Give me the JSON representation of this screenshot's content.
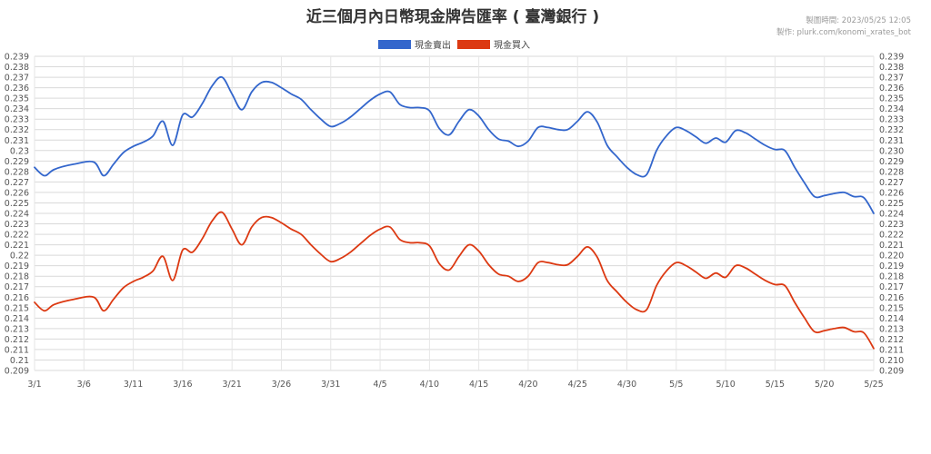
{
  "chart_data": {
    "type": "line",
    "title": "近三個月內日幣現金牌告匯率 ( 臺灣銀行 )",
    "notes": [
      "製圖時間: 2023/05/25 12:05",
      "製作: plurk.com/konomi_xrates_bot"
    ],
    "ylim": [
      0.209,
      0.239
    ],
    "yticks": [
      "0.239",
      "0.238",
      "0.237",
      "0.236",
      "0.235",
      "0.234",
      "0.233",
      "0.232",
      "0.231",
      "0.23",
      "0.229",
      "0.228",
      "0.227",
      "0.226",
      "0.225",
      "0.224",
      "0.223",
      "0.222",
      "0.221",
      "0.22",
      "0.219",
      "0.218",
      "0.217",
      "0.216",
      "0.215",
      "0.214",
      "0.213",
      "0.212",
      "0.211",
      "0.21",
      "0.209"
    ],
    "yticks_right": [
      "0.239",
      "0.238",
      "0.237",
      "0.236",
      "0.235",
      "0.234",
      "0.233",
      "0.232",
      "0.231",
      "0.230",
      "0.229",
      "0.228",
      "0.227",
      "0.226",
      "0.225",
      "0.224",
      "0.223",
      "0.222",
      "0.221",
      "0.220",
      "0.219",
      "0.218",
      "0.217",
      "0.216",
      "0.215",
      "0.214",
      "0.213",
      "0.212",
      "0.211",
      "0.210",
      "0.209"
    ],
    "x_day_range": [
      0,
      85
    ],
    "xticks": [
      {
        "label": "3/1",
        "day": 0
      },
      {
        "label": "3/6",
        "day": 5
      },
      {
        "label": "3/11",
        "day": 10
      },
      {
        "label": "3/16",
        "day": 15
      },
      {
        "label": "3/21",
        "day": 20
      },
      {
        "label": "3/26",
        "day": 25
      },
      {
        "label": "3/31",
        "day": 30
      },
      {
        "label": "4/5",
        "day": 35
      },
      {
        "label": "4/10",
        "day": 40
      },
      {
        "label": "4/15",
        "day": 45
      },
      {
        "label": "4/20",
        "day": 50
      },
      {
        "label": "4/25",
        "day": 55
      },
      {
        "label": "4/30",
        "day": 60
      },
      {
        "label": "5/5",
        "day": 65
      },
      {
        "label": "5/10",
        "day": 70
      },
      {
        "label": "5/15",
        "day": 75
      },
      {
        "label": "5/20",
        "day": 80
      },
      {
        "label": "5/25",
        "day": 85
      }
    ],
    "series": [
      {
        "name": "現金賣出",
        "color": "#3366cc",
        "points": [
          [
            0,
            0.2284
          ],
          [
            1,
            0.2276
          ],
          [
            2,
            0.2282
          ],
          [
            4,
            0.2287
          ],
          [
            6,
            0.2289
          ],
          [
            7,
            0.2276
          ],
          [
            8,
            0.2287
          ],
          [
            9,
            0.2298
          ],
          [
            10,
            0.2304
          ],
          [
            11,
            0.2308
          ],
          [
            12,
            0.2314
          ],
          [
            13,
            0.2328
          ],
          [
            14,
            0.2305
          ],
          [
            15,
            0.2334
          ],
          [
            16,
            0.2332
          ],
          [
            17,
            0.2345
          ],
          [
            18,
            0.2362
          ],
          [
            19,
            0.237
          ],
          [
            20,
            0.2354
          ],
          [
            21,
            0.2339
          ],
          [
            22,
            0.2356
          ],
          [
            23,
            0.2365
          ],
          [
            24,
            0.2365
          ],
          [
            25,
            0.236
          ],
          [
            26,
            0.2354
          ],
          [
            27,
            0.2349
          ],
          [
            28,
            0.2339
          ],
          [
            29,
            0.233
          ],
          [
            30,
            0.2323
          ],
          [
            31,
            0.2326
          ],
          [
            32,
            0.2332
          ],
          [
            33,
            0.234
          ],
          [
            34,
            0.2348
          ],
          [
            35,
            0.2354
          ],
          [
            36,
            0.2356
          ],
          [
            37,
            0.2344
          ],
          [
            38,
            0.2341
          ],
          [
            39,
            0.2341
          ],
          [
            40,
            0.2338
          ],
          [
            41,
            0.2321
          ],
          [
            42,
            0.2315
          ],
          [
            43,
            0.2328
          ],
          [
            44,
            0.2339
          ],
          [
            45,
            0.2333
          ],
          [
            46,
            0.232
          ],
          [
            47,
            0.2311
          ],
          [
            48,
            0.2309
          ],
          [
            49,
            0.2304
          ],
          [
            50,
            0.2309
          ],
          [
            51,
            0.2322
          ],
          [
            52,
            0.2322
          ],
          [
            53,
            0.232
          ],
          [
            54,
            0.232
          ],
          [
            55,
            0.2328
          ],
          [
            56,
            0.2337
          ],
          [
            57,
            0.2327
          ],
          [
            58,
            0.2305
          ],
          [
            59,
            0.2294
          ],
          [
            60,
            0.2284
          ],
          [
            61,
            0.2277
          ],
          [
            62,
            0.2277
          ],
          [
            63,
            0.23
          ],
          [
            64,
            0.2314
          ],
          [
            65,
            0.2322
          ],
          [
            66,
            0.2319
          ],
          [
            67,
            0.2313
          ],
          [
            68,
            0.2307
          ],
          [
            69,
            0.2312
          ],
          [
            70,
            0.2308
          ],
          [
            71,
            0.2319
          ],
          [
            72,
            0.2317
          ],
          [
            73,
            0.2311
          ],
          [
            74,
            0.2305
          ],
          [
            75,
            0.2301
          ],
          [
            76,
            0.23
          ],
          [
            77,
            0.2284
          ],
          [
            78,
            0.2269
          ],
          [
            79,
            0.2256
          ],
          [
            80,
            0.2257
          ],
          [
            81,
            0.2259
          ],
          [
            82,
            0.226
          ],
          [
            83,
            0.2256
          ],
          [
            84,
            0.2255
          ],
          [
            85,
            0.224
          ]
        ]
      },
      {
        "name": "現金買入",
        "color": "#dc3912",
        "points": [
          [
            0,
            0.2155
          ],
          [
            1,
            0.2147
          ],
          [
            2,
            0.2153
          ],
          [
            4,
            0.2158
          ],
          [
            6,
            0.216
          ],
          [
            7,
            0.2147
          ],
          [
            8,
            0.2158
          ],
          [
            9,
            0.2169
          ],
          [
            10,
            0.2175
          ],
          [
            11,
            0.2179
          ],
          [
            12,
            0.2185
          ],
          [
            13,
            0.2199
          ],
          [
            14,
            0.2176
          ],
          [
            15,
            0.2205
          ],
          [
            16,
            0.2203
          ],
          [
            17,
            0.2216
          ],
          [
            18,
            0.2233
          ],
          [
            19,
            0.2241
          ],
          [
            20,
            0.2225
          ],
          [
            21,
            0.221
          ],
          [
            22,
            0.2227
          ],
          [
            23,
            0.2236
          ],
          [
            24,
            0.2236
          ],
          [
            25,
            0.2231
          ],
          [
            26,
            0.2225
          ],
          [
            27,
            0.222
          ],
          [
            28,
            0.221
          ],
          [
            29,
            0.2201
          ],
          [
            30,
            0.2194
          ],
          [
            31,
            0.2197
          ],
          [
            32,
            0.2203
          ],
          [
            33,
            0.2211
          ],
          [
            34,
            0.2219
          ],
          [
            35,
            0.2225
          ],
          [
            36,
            0.2227
          ],
          [
            37,
            0.2215
          ],
          [
            38,
            0.2212
          ],
          [
            39,
            0.2212
          ],
          [
            40,
            0.2209
          ],
          [
            41,
            0.2192
          ],
          [
            42,
            0.2186
          ],
          [
            43,
            0.2199
          ],
          [
            44,
            0.221
          ],
          [
            45,
            0.2204
          ],
          [
            46,
            0.2191
          ],
          [
            47,
            0.2182
          ],
          [
            48,
            0.218
          ],
          [
            49,
            0.2175
          ],
          [
            50,
            0.218
          ],
          [
            51,
            0.2193
          ],
          [
            52,
            0.2193
          ],
          [
            53,
            0.2191
          ],
          [
            54,
            0.2191
          ],
          [
            55,
            0.2199
          ],
          [
            56,
            0.2208
          ],
          [
            57,
            0.2198
          ],
          [
            58,
            0.2176
          ],
          [
            59,
            0.2165
          ],
          [
            60,
            0.2155
          ],
          [
            61,
            0.2148
          ],
          [
            62,
            0.2148
          ],
          [
            63,
            0.2171
          ],
          [
            64,
            0.2185
          ],
          [
            65,
            0.2193
          ],
          [
            66,
            0.219
          ],
          [
            67,
            0.2184
          ],
          [
            68,
            0.2178
          ],
          [
            69,
            0.2183
          ],
          [
            70,
            0.2179
          ],
          [
            71,
            0.219
          ],
          [
            72,
            0.2188
          ],
          [
            73,
            0.2182
          ],
          [
            74,
            0.2176
          ],
          [
            75,
            0.2172
          ],
          [
            76,
            0.2171
          ],
          [
            77,
            0.2155
          ],
          [
            78,
            0.214
          ],
          [
            79,
            0.2127
          ],
          [
            80,
            0.2128
          ],
          [
            81,
            0.213
          ],
          [
            82,
            0.2131
          ],
          [
            83,
            0.2127
          ],
          [
            84,
            0.2126
          ],
          [
            85,
            0.2111
          ]
        ]
      }
    ]
  }
}
